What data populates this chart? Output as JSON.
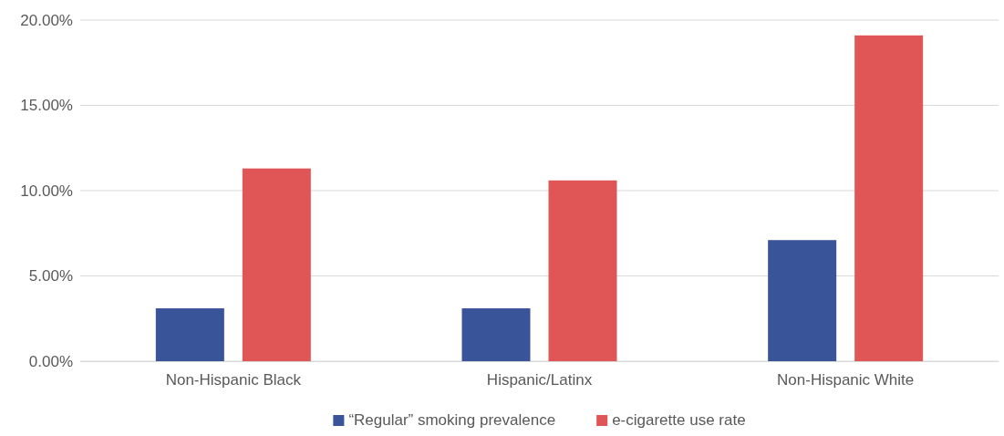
{
  "chart_data": {
    "type": "bar",
    "categories": [
      "Non-Hispanic Black",
      "Hispanic/Latinx",
      "Non-Hispanic White"
    ],
    "series": [
      {
        "name": "“Regular” smoking prevalence",
        "color": "#3a5499",
        "values": [
          3.1,
          3.1,
          7.1
        ]
      },
      {
        "name": "e-cigarette use rate",
        "color": "#e05555",
        "values": [
          11.3,
          10.6,
          19.1
        ]
      }
    ],
    "ylim": [
      0,
      20
    ],
    "yticks": [
      {
        "value": 0,
        "label": "0.00%"
      },
      {
        "value": 5,
        "label": "5.00%"
      },
      {
        "value": 10,
        "label": "10.00%"
      },
      {
        "value": 15,
        "label": "15.00%"
      },
      {
        "value": 20,
        "label": "20.00%"
      }
    ],
    "grid": "y",
    "legend": "bottom"
  }
}
